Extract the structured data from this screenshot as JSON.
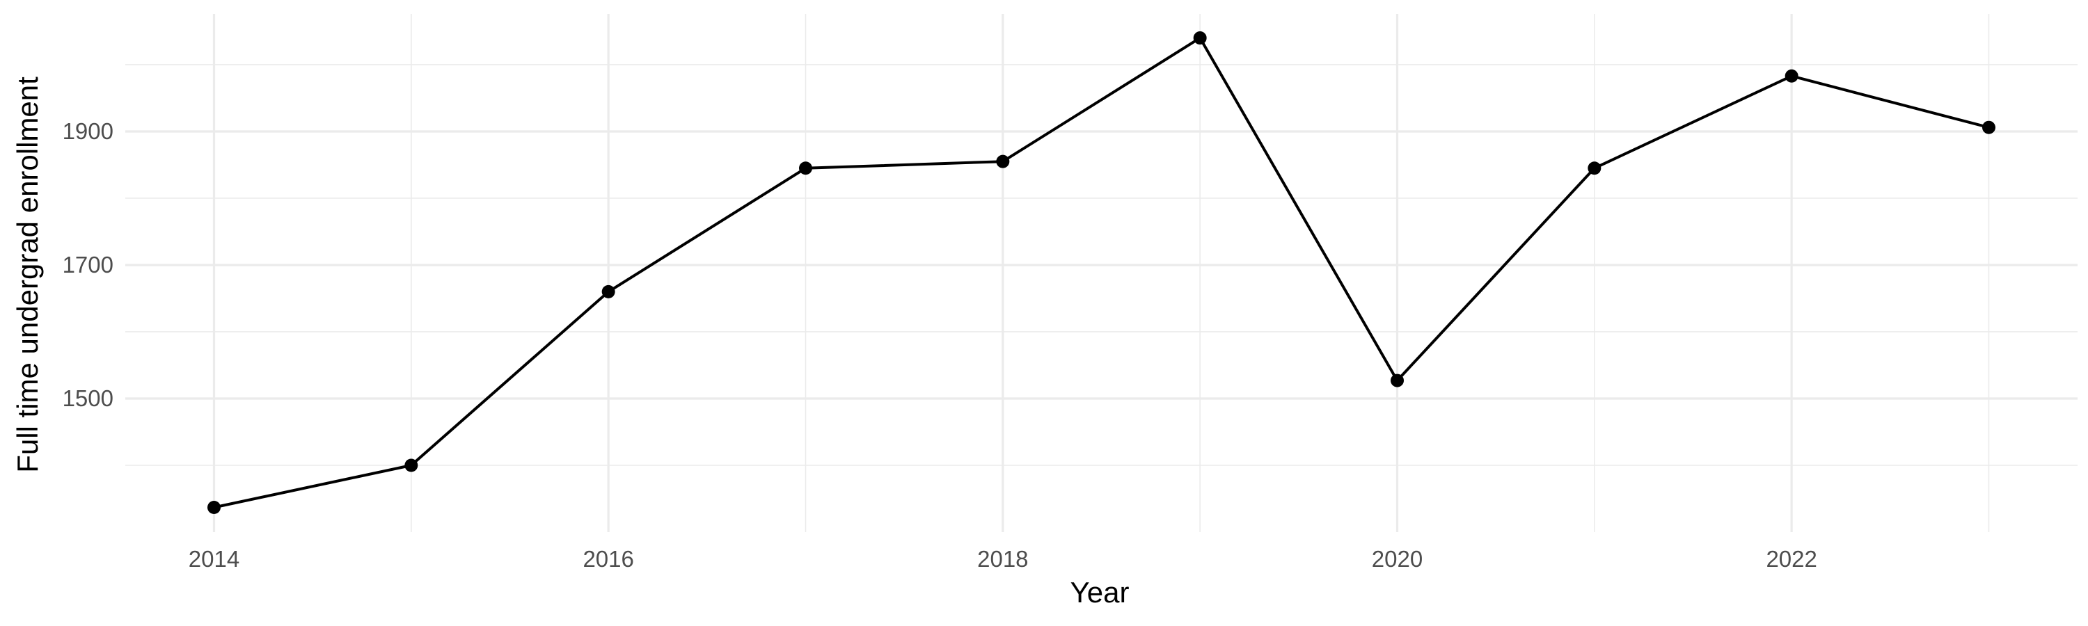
{
  "chart_data": {
    "type": "line",
    "title": "",
    "xlabel": "Year",
    "ylabel": "Full time undergrad enrollment",
    "x": [
      2014,
      2015,
      2016,
      2017,
      2018,
      2019,
      2020,
      2021,
      2022,
      2023
    ],
    "series": [
      {
        "values": [
          1337,
          1400,
          1660,
          1845,
          1855,
          2040,
          1527,
          1845,
          1983,
          1906
        ]
      }
    ],
    "xlim": [
      2013.55,
      2023.45
    ],
    "ylim": [
      1300,
      2076
    ],
    "x_ticks": [
      2014,
      2016,
      2018,
      2020,
      2022
    ],
    "x_tick_labels": [
      "2014",
      "2016",
      "2018",
      "2020",
      "2022"
    ],
    "y_ticks": [
      1500,
      1700,
      1900
    ],
    "y_tick_labels": [
      "1500",
      "1700",
      "1900"
    ],
    "x_minor_ticks": [
      2015,
      2017,
      2019,
      2021,
      2023
    ],
    "y_minor_ticks": [
      1400,
      1600,
      1800,
      2000
    ],
    "grid": true,
    "legend": "none",
    "colors": {
      "line": "#000000",
      "points": "#000000",
      "grid": "#ebebeb",
      "tick_text": "#4d4d4d",
      "background": "#ffffff"
    }
  }
}
